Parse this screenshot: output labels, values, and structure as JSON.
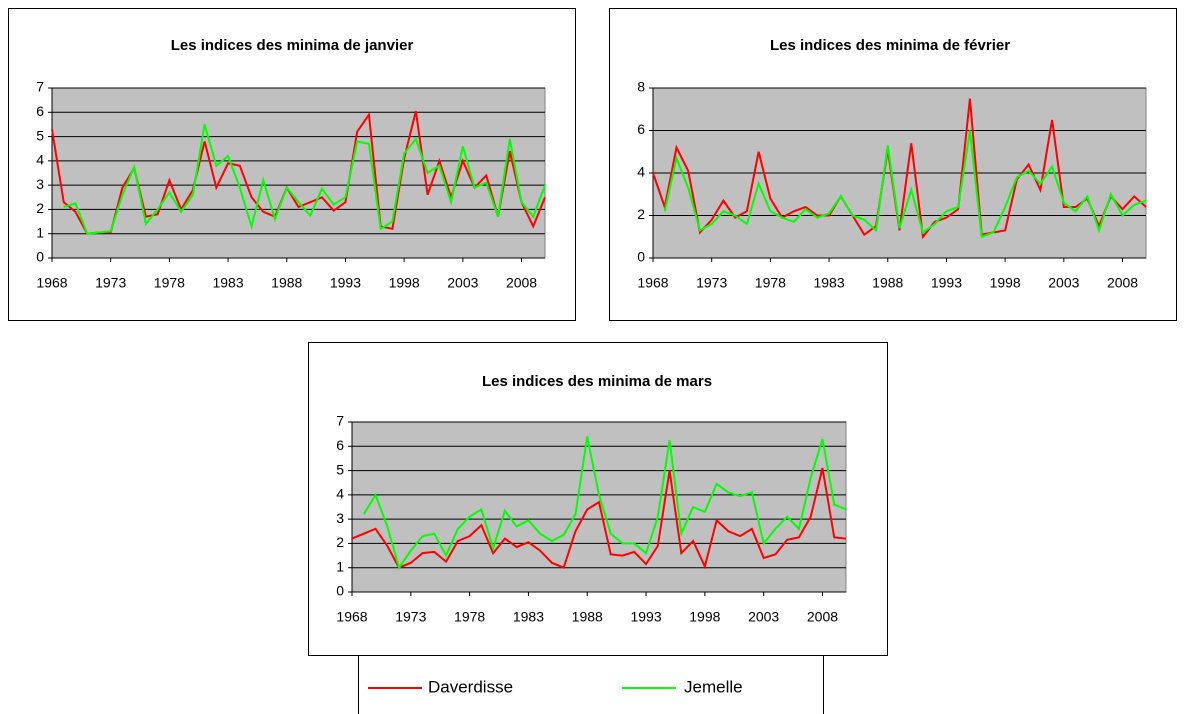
{
  "chart_data": [
    {
      "type": "line",
      "title": "Les indices des minima de janvier",
      "x": [
        1968,
        1969,
        1970,
        1971,
        1972,
        1973,
        1974,
        1975,
        1976,
        1977,
        1978,
        1979,
        1980,
        1981,
        1982,
        1983,
        1984,
        1985,
        1986,
        1987,
        1988,
        1989,
        1990,
        1991,
        1992,
        1993,
        1994,
        1995,
        1996,
        1997,
        1998,
        1999,
        2000,
        2001,
        2002,
        2003,
        2004,
        2005,
        2006,
        2007,
        2008,
        2009,
        2010
      ],
      "xlim": [
        1968,
        2010
      ],
      "xticks": [
        1968,
        1973,
        1978,
        1983,
        1988,
        1993,
        1998,
        2003,
        2008
      ],
      "ylim": [
        0,
        7
      ],
      "yticks": [
        0,
        1,
        2,
        3,
        4,
        5,
        6,
        7
      ],
      "grid": true,
      "series": [
        {
          "color": "#ff0000",
          "values": [
            5.3,
            2.3,
            1.9,
            1.0,
            1.05,
            1.05,
            2.9,
            3.7,
            1.7,
            1.8,
            3.2,
            2.0,
            2.8,
            4.8,
            2.9,
            3.9,
            3.8,
            2.5,
            1.9,
            1.7,
            2.9,
            2.1,
            2.3,
            2.5,
            1.95,
            2.3,
            5.2,
            5.9,
            1.3,
            1.2,
            4.1,
            6.05,
            2.6,
            4.0,
            2.5,
            4.0,
            2.9,
            3.4,
            1.7,
            4.4,
            2.3,
            1.3,
            2.5
          ]
        },
        {
          "color": "#00ff00",
          "values": [
            null,
            2.1,
            2.25,
            1.0,
            1.05,
            1.1,
            2.6,
            3.75,
            1.4,
            2.0,
            2.7,
            1.9,
            2.6,
            5.5,
            3.8,
            4.2,
            2.9,
            1.3,
            3.2,
            1.6,
            2.9,
            2.3,
            1.75,
            2.85,
            2.2,
            2.5,
            4.8,
            4.7,
            1.2,
            1.5,
            4.3,
            4.9,
            3.5,
            3.8,
            2.3,
            4.6,
            2.9,
            3.1,
            1.7,
            4.9,
            2.3,
            1.7,
            3.0
          ]
        }
      ]
    },
    {
      "type": "line",
      "title": "Les indices des minima de février",
      "x": [
        1968,
        1969,
        1970,
        1971,
        1972,
        1973,
        1974,
        1975,
        1976,
        1977,
        1978,
        1979,
        1980,
        1981,
        1982,
        1983,
        1984,
        1985,
        1986,
        1987,
        1988,
        1989,
        1990,
        1991,
        1992,
        1993,
        1994,
        1995,
        1996,
        1997,
        1998,
        1999,
        2000,
        2001,
        2002,
        2003,
        2004,
        2005,
        2006,
        2007,
        2008,
        2009,
        2010
      ],
      "xlim": [
        1968,
        2010
      ],
      "xticks": [
        1968,
        1973,
        1978,
        1983,
        1988,
        1993,
        1998,
        2003,
        2008
      ],
      "ylim": [
        0,
        8
      ],
      "yticks": [
        0,
        2,
        4,
        6,
        8
      ],
      "grid": true,
      "series": [
        {
          "color": "#ff0000",
          "values": [
            4.0,
            2.4,
            5.2,
            4.1,
            1.2,
            1.8,
            2.7,
            1.9,
            2.2,
            5.0,
            2.8,
            1.9,
            2.2,
            2.4,
            2.0,
            2.0,
            2.9,
            2.0,
            1.1,
            1.5,
            5.1,
            1.3,
            5.4,
            1.0,
            1.7,
            1.9,
            2.3,
            7.5,
            1.1,
            1.2,
            1.3,
            3.7,
            4.4,
            3.2,
            6.5,
            2.4,
            2.4,
            2.8,
            1.5,
            2.9,
            2.3,
            2.9,
            2.4
          ]
        },
        {
          "color": "#00ff00",
          "values": [
            null,
            2.2,
            4.7,
            3.3,
            1.3,
            1.6,
            2.2,
            2.0,
            1.6,
            3.5,
            2.2,
            1.9,
            1.7,
            2.3,
            1.9,
            2.1,
            2.9,
            2.0,
            1.8,
            1.3,
            5.3,
            1.4,
            3.2,
            1.2,
            1.6,
            2.2,
            2.4,
            6.0,
            1.0,
            1.2,
            2.4,
            3.8,
            4.1,
            3.5,
            4.3,
            2.6,
            2.2,
            2.9,
            1.3,
            3.0,
            2.0,
            2.5,
            2.7
          ]
        }
      ]
    },
    {
      "type": "line",
      "title": "Les indices des minima de mars",
      "x": [
        1968,
        1969,
        1970,
        1971,
        1972,
        1973,
        1974,
        1975,
        1976,
        1977,
        1978,
        1979,
        1980,
        1981,
        1982,
        1983,
        1984,
        1985,
        1986,
        1987,
        1988,
        1989,
        1990,
        1991,
        1992,
        1993,
        1994,
        1995,
        1996,
        1997,
        1998,
        1999,
        2000,
        2001,
        2002,
        2003,
        2004,
        2005,
        2006,
        2007,
        2008,
        2009,
        2010
      ],
      "xlim": [
        1968,
        2010
      ],
      "xticks": [
        1968,
        1973,
        1978,
        1983,
        1988,
        1993,
        1998,
        2003,
        2008
      ],
      "ylim": [
        0,
        7
      ],
      "yticks": [
        0,
        1,
        2,
        3,
        4,
        5,
        6,
        7
      ],
      "grid": true,
      "series": [
        {
          "name": "Daverdisse",
          "color": "#ff0000",
          "values": [
            2.2,
            2.4,
            2.6,
            1.9,
            1.0,
            1.2,
            1.6,
            1.65,
            1.25,
            2.1,
            2.3,
            2.75,
            1.6,
            2.2,
            1.85,
            2.05,
            1.7,
            1.2,
            1.0,
            2.5,
            3.4,
            3.7,
            1.55,
            1.5,
            1.65,
            1.15,
            1.9,
            5.0,
            1.6,
            2.1,
            1.05,
            2.95,
            2.5,
            2.3,
            2.6,
            1.4,
            1.55,
            2.15,
            2.25,
            3.1,
            5.1,
            2.25,
            2.2
          ]
        },
        {
          "name": "Jemelle",
          "color": "#00ff00",
          "values": [
            null,
            3.2,
            4.0,
            2.7,
            1.0,
            1.7,
            2.3,
            2.4,
            1.5,
            2.6,
            3.1,
            3.4,
            1.8,
            3.35,
            2.7,
            2.95,
            2.4,
            2.1,
            2.35,
            3.2,
            6.4,
            4.0,
            2.4,
            2.0,
            2.0,
            1.6,
            3.1,
            6.25,
            2.4,
            3.5,
            3.3,
            4.45,
            4.1,
            3.95,
            4.1,
            2.0,
            2.6,
            3.1,
            2.6,
            4.7,
            6.3,
            3.6,
            3.4
          ]
        }
      ]
    }
  ]
}
